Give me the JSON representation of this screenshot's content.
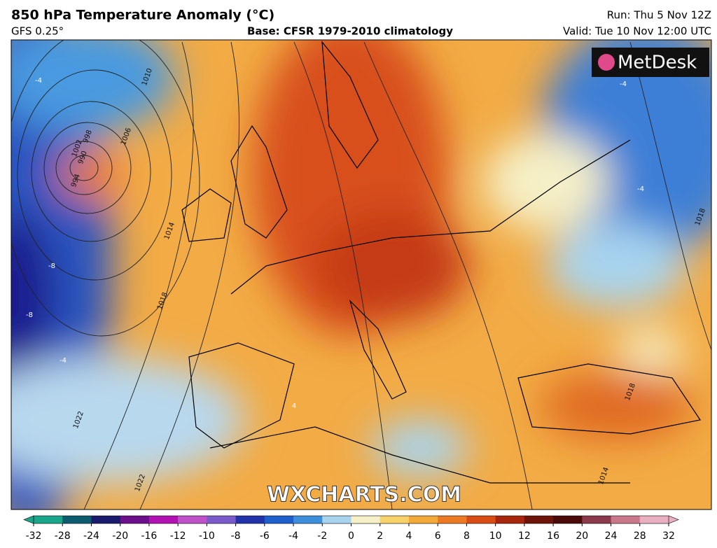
{
  "header": {
    "title": "850 hPa Temperature Anomaly (°C)",
    "model": "GFS 0.25°",
    "base": "Base: CFSR 1979-2010 climatology",
    "run": "Run: Thu 5 Nov 12Z",
    "valid": "Valid: Tue 10 Nov 12:00 UTC"
  },
  "logo": "MetDesk",
  "watermark": "WXCHARTS.COM",
  "isobar_labels": [
    "1002",
    "1006",
    "1010",
    "998",
    "994",
    "990",
    "1014",
    "1018",
    "1022",
    "1022",
    "1014",
    "1018",
    "1018"
  ],
  "anomaly_labels": [
    "-4",
    "-8",
    "-8",
    "-4",
    "4",
    "-4",
    "-4"
  ],
  "colorbar": {
    "ticks": [
      -32,
      -28,
      -24,
      -20,
      -16,
      -12,
      -10,
      -8,
      -6,
      -4,
      -2,
      0,
      2,
      4,
      6,
      8,
      10,
      12,
      16,
      20,
      24,
      28,
      32
    ],
    "colors": [
      "#1aa68a",
      "#0d5c6e",
      "#1a1a6e",
      "#6b0f8a",
      "#b312b3",
      "#c052c9",
      "#7a5bc9",
      "#2233aa",
      "#1f5fcc",
      "#3d8fdb",
      "#a8d4ef",
      "#f5f0c8",
      "#f7d26a",
      "#f3a83a",
      "#ec7a24",
      "#d84c15",
      "#a8260c",
      "#6e1408",
      "#4a0a0a",
      "#8a3a4a",
      "#c9788a",
      "#e8b0c0"
    ]
  }
}
